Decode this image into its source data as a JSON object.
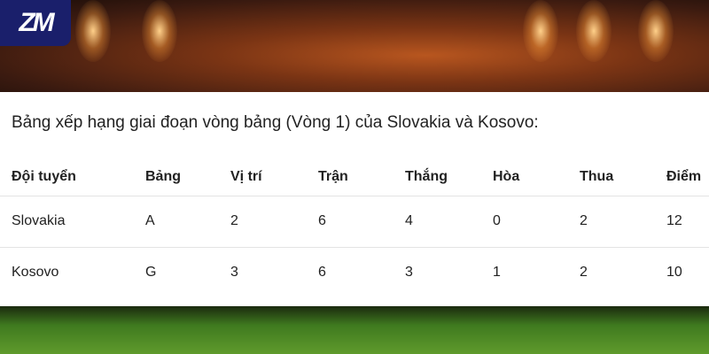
{
  "logo": "ZM",
  "caption": "Bảng xếp hạng giai đoạn vòng bảng (Vòng 1) của Slovakia và Kosovo:",
  "table": {
    "headers": [
      "Đội tuyển",
      "Bảng",
      "Vị trí",
      "Trận",
      "Thắng",
      "Hòa",
      "Thua",
      "Điểm"
    ],
    "rows": [
      [
        "Slovakia",
        "A",
        "2",
        "6",
        "4",
        "0",
        "2",
        "12"
      ],
      [
        "Kosovo",
        "G",
        "3",
        "6",
        "3",
        "1",
        "2",
        "10"
      ]
    ]
  }
}
